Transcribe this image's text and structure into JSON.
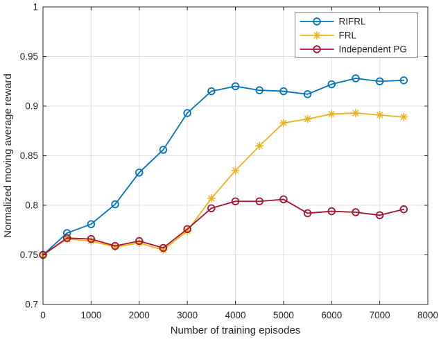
{
  "chart_data": {
    "type": "line",
    "title": "",
    "xlabel": "Number of training episodes",
    "ylabel": "Normalized moving average reward",
    "xlim": [
      0,
      8000
    ],
    "ylim": [
      0.7,
      1.0
    ],
    "xticks": [
      0,
      1000,
      2000,
      3000,
      4000,
      5000,
      6000,
      7000,
      8000
    ],
    "xtick_labels": [
      "0",
      "1000",
      "2000",
      "3000",
      "4000",
      "5000",
      "6000",
      "7000",
      "8000"
    ],
    "yticks": [
      0.7,
      0.75,
      0.8,
      0.85,
      0.9,
      0.95,
      1.0
    ],
    "ytick_labels": [
      "0.7",
      "0.75",
      "0.8",
      "0.85",
      "0.9",
      "0.95",
      "1"
    ],
    "grid": true,
    "legend_position": "top-right",
    "x": [
      0,
      500,
      1000,
      1500,
      2000,
      2500,
      3000,
      3500,
      4000,
      4500,
      5000,
      5500,
      6000,
      6500,
      7000,
      7500
    ],
    "series": [
      {
        "name": "RIFRL",
        "color": "#0072BD",
        "marker": "circle",
        "values": [
          0.75,
          0.772,
          0.781,
          0.801,
          0.833,
          0.856,
          0.893,
          0.915,
          0.92,
          0.916,
          0.915,
          0.912,
          0.922,
          0.928,
          0.925,
          0.926
        ]
      },
      {
        "name": "FRL",
        "color": "#EDB120",
        "marker": "asterisk",
        "values": [
          0.75,
          0.766,
          0.764,
          0.758,
          0.762,
          0.755,
          0.774,
          0.807,
          0.835,
          0.86,
          0.883,
          0.887,
          0.892,
          0.893,
          0.891,
          0.889
        ]
      },
      {
        "name": "Independent PG",
        "color": "#A2142F",
        "marker": "circle",
        "values": [
          0.75,
          0.767,
          0.766,
          0.759,
          0.764,
          0.757,
          0.776,
          0.797,
          0.804,
          0.804,
          0.806,
          0.792,
          0.794,
          0.793,
          0.79,
          0.796
        ]
      }
    ],
    "colors": {
      "background": "#ffffff",
      "grid": "#e0e0e0",
      "axis": "#262626",
      "text": "#262626",
      "legend_border": "#808080",
      "legend_background": "#ffffff"
    }
  }
}
